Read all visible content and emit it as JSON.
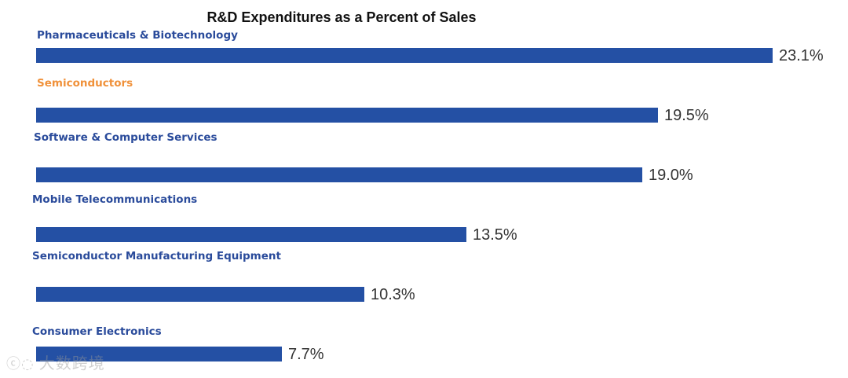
{
  "colors": {
    "bar": "#2450a4",
    "label_default": "#2a4b9b",
    "label_highlight": "#f0913a"
  },
  "chart_data": {
    "type": "bar",
    "orientation": "horizontal",
    "title": "R&D Expenditures as a Percent of Sales",
    "xlabel": "",
    "ylabel": "",
    "xlim": [
      0,
      23.1
    ],
    "value_suffix": "%",
    "categories": [
      "Pharmaceuticals & Biotechnology",
      "Semiconductors",
      "Software & Computer Services",
      "Mobile Telecommunications",
      "Semiconductor Manufacturing Equipment",
      "Consumer Electronics"
    ],
    "values": [
      23.1,
      19.5,
      19.0,
      13.5,
      10.3,
      7.7
    ],
    "value_labels": [
      "23.1%",
      "19.5%",
      "19.0%",
      "13.5%",
      "10.3%",
      "7.7%"
    ],
    "highlight_category": "Semiconductors"
  },
  "watermark": {
    "icon": "chat-bubble-icon",
    "text": "大数跨境"
  }
}
